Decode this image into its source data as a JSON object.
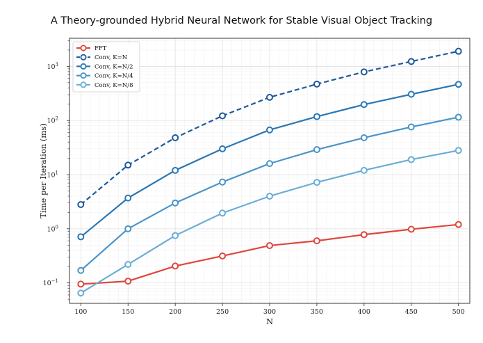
{
  "page": {
    "header": "A Theory-grounded Hybrid Neural Network for Stable Visual Object Tracking"
  },
  "chart_data": {
    "type": "line",
    "title": "",
    "xlabel": "N",
    "ylabel": "Time per Iteration (ms)",
    "x": [
      100,
      150,
      200,
      250,
      300,
      350,
      400,
      450,
      500
    ],
    "x_ticks": [
      100,
      150,
      200,
      250,
      300,
      350,
      400,
      450,
      500
    ],
    "xlim": [
      88,
      512
    ],
    "yscale": "log",
    "ylim": [
      0.042,
      3300
    ],
    "y_ticks": [
      {
        "value": 0.1,
        "base": "10",
        "exp": "−1"
      },
      {
        "value": 1,
        "base": "10",
        "exp": "0"
      },
      {
        "value": 10,
        "base": "10",
        "exp": "1"
      },
      {
        "value": 100,
        "base": "10",
        "exp": "2"
      },
      {
        "value": 1000,
        "base": "10",
        "exp": "3"
      }
    ],
    "grid": true,
    "legend_position": "top-left",
    "series": [
      {
        "name": "FFT",
        "color": "#e0463c",
        "dashed": false,
        "values": [
          0.095,
          0.108,
          0.205,
          0.315,
          0.49,
          0.6,
          0.78,
          0.98,
          1.2
        ]
      },
      {
        "name": "Conv, K=N",
        "color": "#1c5a9e",
        "dashed": true,
        "values": [
          2.8,
          15,
          48,
          122,
          268,
          470,
          790,
          1230,
          1900
        ]
      },
      {
        "name": "Conv, K=N/2",
        "color": "#2b77b5",
        "dashed": false,
        "values": [
          0.71,
          3.7,
          12,
          30,
          67,
          118,
          197,
          305,
          465
        ]
      },
      {
        "name": "Conv, K=N/4",
        "color": "#4994c8",
        "dashed": false,
        "values": [
          0.17,
          1.0,
          3.0,
          7.3,
          16,
          29,
          48,
          76,
          115
        ]
      },
      {
        "name": "Conv, K=N/8",
        "color": "#6aadd6",
        "dashed": false,
        "values": [
          0.065,
          0.22,
          0.75,
          1.95,
          4.0,
          7.2,
          12,
          19,
          28
        ]
      }
    ]
  }
}
